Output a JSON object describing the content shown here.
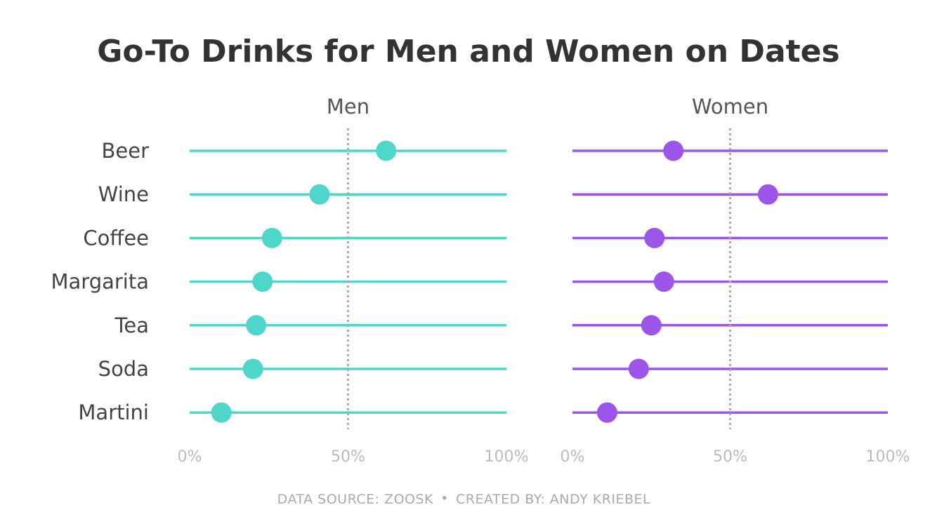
{
  "chart_data": {
    "type": "dot",
    "title": "Go-To Drinks for Men and Women on Dates",
    "categories": [
      "Beer",
      "Wine",
      "Coffee",
      "Margarita",
      "Tea",
      "Soda",
      "Martini"
    ],
    "xlim": [
      0,
      100
    ],
    "x_unit": "%",
    "reference_line": 50,
    "x_ticks": [
      "0%",
      "50%",
      "100%"
    ],
    "series": [
      {
        "name": "Men",
        "color": "#4fd6cb",
        "values": [
          62,
          41,
          26,
          23,
          21,
          20,
          10
        ]
      },
      {
        "name": "Women",
        "color": "#9c55e8",
        "values": [
          32,
          62,
          26,
          29,
          25,
          21,
          11
        ]
      }
    ]
  },
  "footer": {
    "source": "DATA SOURCE: ZOOSK",
    "separator": "•",
    "credit": "CREATED BY: ANDY KRIEBEL"
  }
}
